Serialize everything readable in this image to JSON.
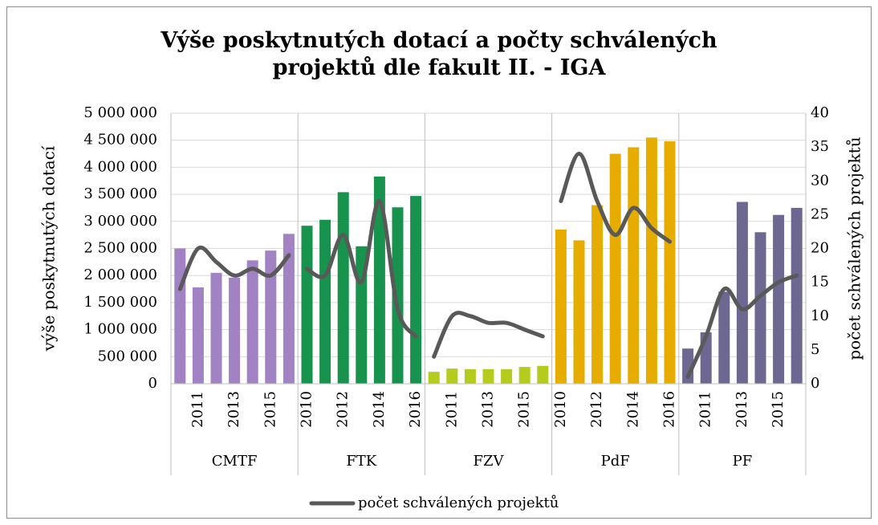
{
  "chart_data": {
    "type": "bar_line",
    "title": "Výše poskytnutých dotací a počty schválených projektů dle fakult II. - IGA",
    "y_label": "výše poskytnutých dotací",
    "y2_label": "počet schválených projektů",
    "groups": [
      "CMTF",
      "FTK",
      "FZV",
      "PdF",
      "PF"
    ],
    "categories": [
      null,
      "2011",
      null,
      "2013",
      null,
      "2015",
      null,
      "2010",
      null,
      "2012",
      null,
      "2014",
      null,
      "2016",
      null,
      "2011",
      null,
      "2013",
      null,
      "2015",
      null,
      "2010",
      null,
      "2012",
      null,
      "2014",
      null,
      "2016",
      null,
      "2011",
      null,
      "2013",
      null,
      "2015",
      null
    ],
    "series": [
      {
        "type": "bar",
        "group_colors": [
          "#a182c3",
          "#17934d",
          "#b5cc1f",
          "#e6ad00",
          "#6d6891"
        ],
        "values": [
          2500000,
          1780000,
          2050000,
          1960000,
          2280000,
          2460000,
          2770000,
          2920000,
          3030000,
          3540000,
          2540000,
          3830000,
          3260000,
          3470000,
          220000,
          280000,
          270000,
          270000,
          270000,
          310000,
          330000,
          2850000,
          2650000,
          3300000,
          4250000,
          4370000,
          4550000,
          4480000,
          650000,
          950000,
          1700000,
          3360000,
          2800000,
          3120000,
          3250000
        ]
      },
      {
        "type": "line",
        "name": "počet schválených projektů",
        "color": "#595959",
        "axis": "y2",
        "values": [
          14,
          20,
          18,
          16,
          17,
          16,
          19,
          17,
          16,
          22,
          15,
          27,
          11,
          7,
          4,
          10,
          10,
          9,
          9,
          8,
          7,
          27,
          34,
          27,
          22,
          26,
          23,
          21,
          1,
          7,
          14,
          11,
          13,
          15,
          16
        ]
      }
    ],
    "ylim": [
      0,
      5000000
    ],
    "yticks": [
      0,
      {
        "value": 500000,
        "label": "500 000"
      },
      {
        "value": 1000000,
        "label": "1 000 000"
      },
      {
        "value": 1500000,
        "label": "1 500 000"
      },
      {
        "value": 2000000,
        "label": "2 000 000"
      },
      {
        "value": 2500000,
        "label": "2 500 000"
      },
      {
        "value": 3000000,
        "label": "3 000 000"
      },
      {
        "value": 3500000,
        "label": "3 500 000"
      },
      {
        "value": 4000000,
        "label": "4 000 000"
      },
      {
        "value": 4500000,
        "label": "4 500 000"
      },
      {
        "value": 5000000,
        "label": "5 000 000"
      }
    ],
    "y2lim": [
      0,
      40
    ],
    "y2ticks": [
      0,
      5,
      10,
      15,
      20,
      25,
      30,
      35,
      40
    ],
    "grid": true,
    "legend": "bottom"
  }
}
